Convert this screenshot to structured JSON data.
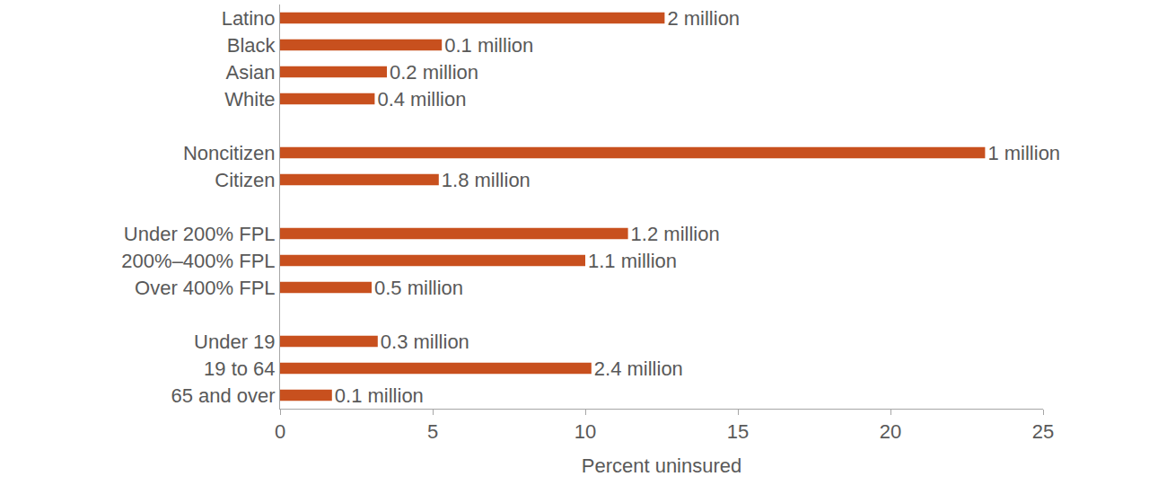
{
  "chart_data": {
    "type": "bar",
    "orientation": "horizontal",
    "x_label": "Percent uninsured",
    "categories": [
      "Latino",
      "Black",
      "Asian",
      "White",
      null,
      "Noncitizen",
      "Citizen",
      null,
      "Under 200% FPL",
      "200%–400% FPL",
      "Over 400% FPL",
      null,
      "Under 19",
      "19 to 64",
      "65 and over"
    ],
    "values": [
      12.6,
      5.3,
      3.5,
      3.1,
      null,
      23.1,
      5.2,
      null,
      11.4,
      10.0,
      3.0,
      null,
      3.2,
      10.2,
      1.7
    ],
    "bar_labels": [
      "2 million",
      "0.1 million",
      "0.2 million",
      "0.4 million",
      null,
      "1 million",
      "1.8 million",
      null,
      "1.2 million",
      "1.1 million",
      "0.5 million",
      null,
      "0.3 million",
      "2.4 million",
      "0.1 million"
    ],
    "color": "#c8501e",
    "xlim": [
      0,
      25
    ],
    "xticks": [
      0,
      5,
      10,
      15,
      20,
      25
    ],
    "grid": false
  }
}
